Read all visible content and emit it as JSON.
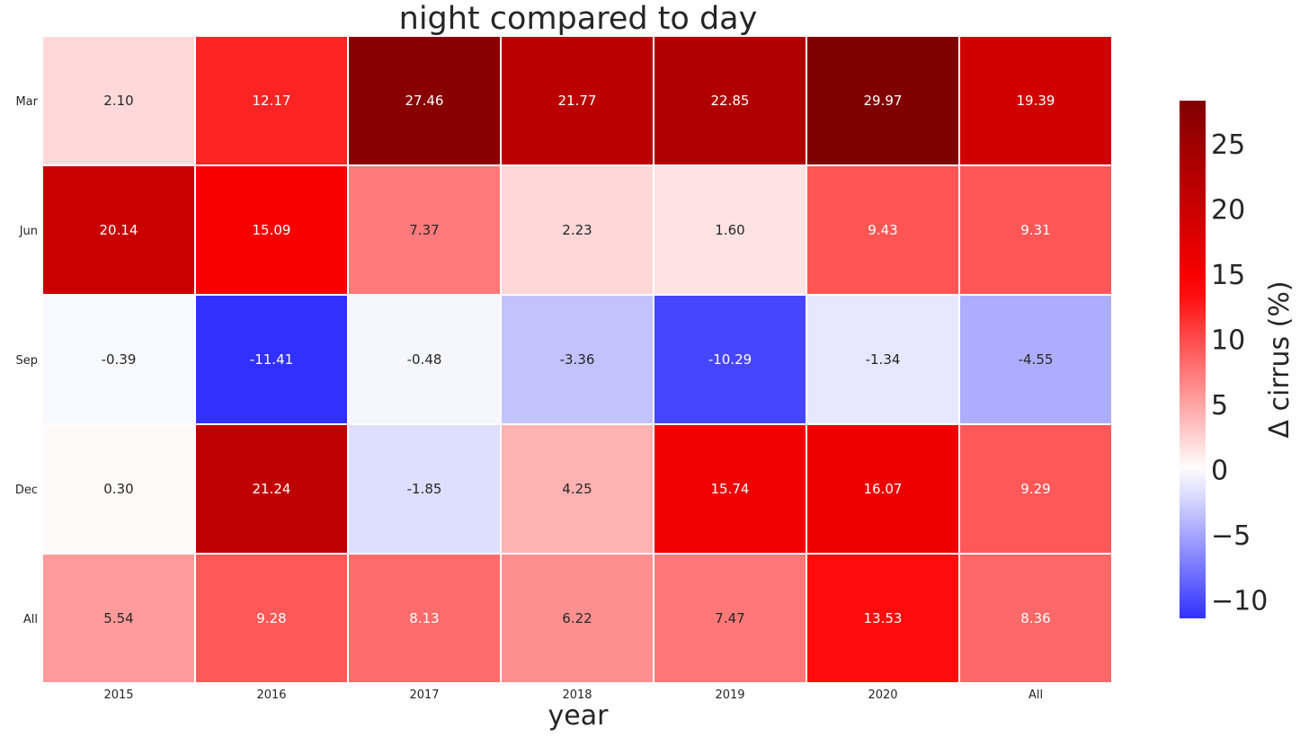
{
  "chart_data": {
    "type": "heatmap",
    "title": "night compared to day",
    "xlabel": "year",
    "ylabel": "",
    "x_categories": [
      "2015",
      "2016",
      "2017",
      "2018",
      "2019",
      "2020",
      "All"
    ],
    "y_categories": [
      "Mar",
      "Jun",
      "Sep",
      "Dec",
      "All"
    ],
    "values": [
      [
        2.1,
        12.17,
        27.46,
        21.77,
        22.85,
        29.97,
        19.39
      ],
      [
        20.14,
        15.09,
        7.37,
        2.23,
        1.6,
        9.43,
        9.31
      ],
      [
        -0.39,
        -11.41,
        -0.48,
        -3.36,
        -10.29,
        -1.34,
        -4.55
      ],
      [
        0.3,
        21.24,
        -1.85,
        4.25,
        15.74,
        16.07,
        9.29
      ],
      [
        5.54,
        9.28,
        8.13,
        6.22,
        7.47,
        13.53,
        8.36
      ]
    ],
    "value_format": "2 decimals",
    "colormap": "seismic",
    "colorbar": {
      "label": "Δ cirrus (%)",
      "range": [
        -11.41,
        28.3
      ],
      "center": 0,
      "ticks": [
        -10,
        -5,
        0,
        5,
        10,
        15,
        20,
        25
      ],
      "tick_labels": [
        "−10",
        "−5",
        "0",
        "5",
        "10",
        "15",
        "20",
        "25"
      ]
    },
    "colors": {
      "neg_max": "#0000ff",
      "zero": "#ffffff",
      "pos_mid": "#ff0000",
      "pos_max": "#800000",
      "cell_separator": "#ffffff",
      "text_dark": "#262626",
      "text_light": "#ffffff"
    }
  }
}
